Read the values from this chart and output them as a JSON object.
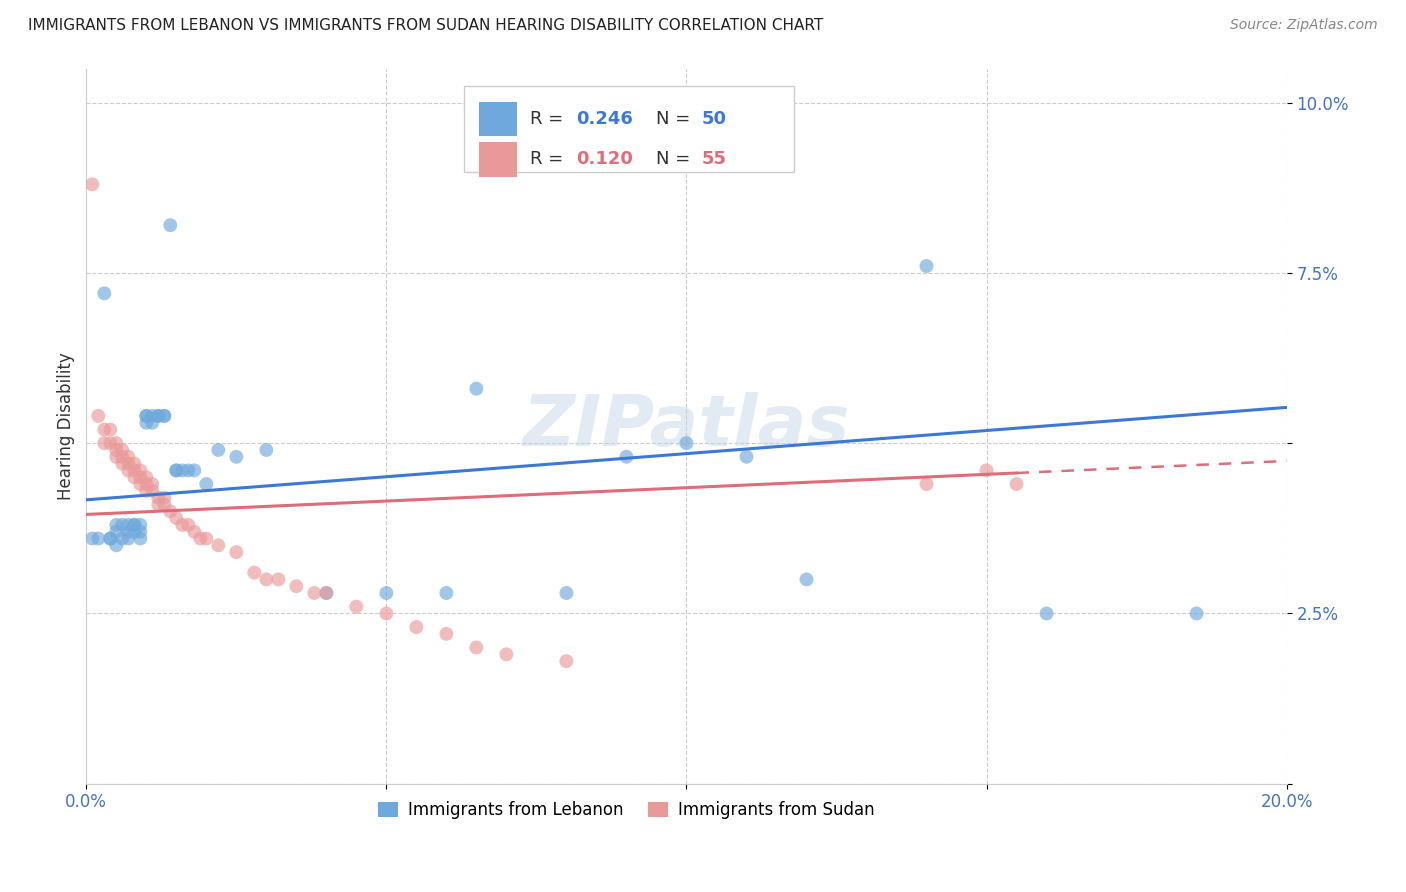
{
  "title": "IMMIGRANTS FROM LEBANON VS IMMIGRANTS FROM SUDAN HEARING DISABILITY CORRELATION CHART",
  "source": "Source: ZipAtlas.com",
  "ylabel": "Hearing Disability",
  "xlim": [
    0.0,
    0.2
  ],
  "ylim": [
    0.0,
    0.105
  ],
  "lebanon_R": 0.246,
  "lebanon_N": 50,
  "sudan_R": 0.12,
  "sudan_N": 55,
  "lebanon_color": "#6fa8dc",
  "sudan_color": "#ea9999",
  "trend_lebanon_color": "#3c78d8",
  "trend_sudan_color": "#e06c7a",
  "background_color": "#ffffff",
  "lebanon_x": [
    0.001,
    0.002,
    0.003,
    0.004,
    0.004,
    0.005,
    0.005,
    0.005,
    0.006,
    0.006,
    0.007,
    0.007,
    0.007,
    0.008,
    0.008,
    0.008,
    0.009,
    0.009,
    0.009,
    0.01,
    0.01,
    0.01,
    0.011,
    0.011,
    0.012,
    0.012,
    0.013,
    0.013,
    0.014,
    0.015,
    0.015,
    0.016,
    0.017,
    0.018,
    0.02,
    0.022,
    0.025,
    0.03,
    0.04,
    0.05,
    0.06,
    0.065,
    0.08,
    0.09,
    0.1,
    0.11,
    0.12,
    0.14,
    0.16,
    0.185
  ],
  "lebanon_y": [
    0.036,
    0.036,
    0.072,
    0.036,
    0.036,
    0.038,
    0.037,
    0.035,
    0.038,
    0.036,
    0.038,
    0.037,
    0.036,
    0.038,
    0.038,
    0.037,
    0.038,
    0.037,
    0.036,
    0.054,
    0.054,
    0.053,
    0.054,
    0.053,
    0.054,
    0.054,
    0.054,
    0.054,
    0.082,
    0.046,
    0.046,
    0.046,
    0.046,
    0.046,
    0.044,
    0.049,
    0.048,
    0.049,
    0.028,
    0.028,
    0.028,
    0.058,
    0.028,
    0.048,
    0.05,
    0.048,
    0.03,
    0.076,
    0.025,
    0.025
  ],
  "sudan_x": [
    0.001,
    0.002,
    0.003,
    0.003,
    0.004,
    0.004,
    0.005,
    0.005,
    0.005,
    0.006,
    0.006,
    0.006,
    0.007,
    0.007,
    0.007,
    0.008,
    0.008,
    0.008,
    0.009,
    0.009,
    0.009,
    0.01,
    0.01,
    0.01,
    0.011,
    0.011,
    0.012,
    0.012,
    0.013,
    0.013,
    0.014,
    0.015,
    0.016,
    0.017,
    0.018,
    0.019,
    0.02,
    0.022,
    0.025,
    0.028,
    0.03,
    0.032,
    0.035,
    0.038,
    0.04,
    0.045,
    0.05,
    0.055,
    0.06,
    0.065,
    0.07,
    0.08,
    0.14,
    0.15,
    0.155
  ],
  "sudan_y": [
    0.088,
    0.054,
    0.052,
    0.05,
    0.052,
    0.05,
    0.05,
    0.049,
    0.048,
    0.049,
    0.048,
    0.047,
    0.048,
    0.047,
    0.046,
    0.047,
    0.046,
    0.045,
    0.046,
    0.045,
    0.044,
    0.045,
    0.044,
    0.043,
    0.044,
    0.043,
    0.042,
    0.041,
    0.042,
    0.041,
    0.04,
    0.039,
    0.038,
    0.038,
    0.037,
    0.036,
    0.036,
    0.035,
    0.034,
    0.031,
    0.03,
    0.03,
    0.029,
    0.028,
    0.028,
    0.026,
    0.025,
    0.023,
    0.022,
    0.02,
    0.019,
    0.018,
    0.044,
    0.046,
    0.044
  ]
}
